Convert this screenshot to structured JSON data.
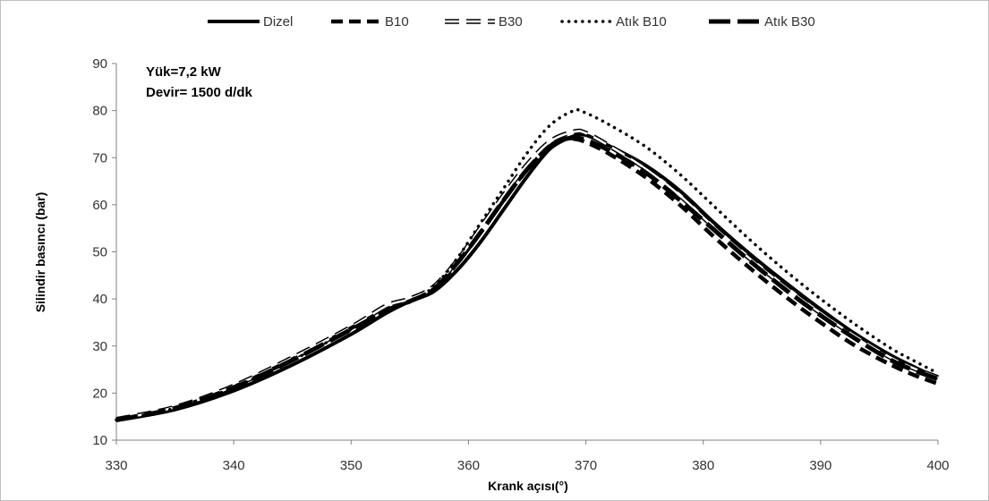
{
  "chart_data": {
    "type": "line",
    "xlabel": "Krank açısı(°)",
    "ylabel": "Silindir basıncı (bar)",
    "xlim": [
      330,
      400
    ],
    "ylim": [
      10,
      90
    ],
    "xticks": [
      330,
      340,
      350,
      360,
      370,
      380,
      390,
      400
    ],
    "yticks": [
      10,
      20,
      30,
      40,
      50,
      60,
      70,
      80,
      90
    ],
    "grid": false,
    "legend_position": "top",
    "annotations": [
      "Yük=7,2 kW",
      "Devir= 1500 d/dk"
    ],
    "series": [
      {
        "name": "Dizel",
        "style": "solid",
        "points": [
          [
            330,
            14.2
          ],
          [
            335,
            16.5
          ],
          [
            340,
            20.5
          ],
          [
            345,
            26.0
          ],
          [
            350,
            32.5
          ],
          [
            353,
            37.0
          ],
          [
            355,
            39.5
          ],
          [
            357,
            41.5
          ],
          [
            359,
            46.0
          ],
          [
            361,
            52.0
          ],
          [
            363,
            59.0
          ],
          [
            365,
            66.0
          ],
          [
            367,
            72.0
          ],
          [
            369,
            74.6
          ],
          [
            370,
            74.8
          ],
          [
            372,
            72.5
          ],
          [
            375,
            68.5
          ],
          [
            378,
            63.0
          ],
          [
            381,
            56.0
          ],
          [
            384,
            49.5
          ],
          [
            387,
            43.5
          ],
          [
            390,
            37.8
          ],
          [
            393,
            32.5
          ],
          [
            396,
            28.0
          ],
          [
            398,
            25.5
          ],
          [
            400,
            23.2
          ]
        ]
      },
      {
        "name": "B10",
        "style": "dashed",
        "points": [
          [
            330,
            14.3
          ],
          [
            335,
            16.8
          ],
          [
            340,
            21.3
          ],
          [
            345,
            27.2
          ],
          [
            350,
            33.8
          ],
          [
            353,
            37.8
          ],
          [
            355,
            39.5
          ],
          [
            357,
            42.0
          ],
          [
            359,
            47.5
          ],
          [
            361,
            54.0
          ],
          [
            363,
            61.0
          ],
          [
            365,
            67.5
          ],
          [
            367,
            72.5
          ],
          [
            368,
            73.8
          ],
          [
            369,
            74.0
          ],
          [
            370,
            73.3
          ],
          [
            372,
            70.8
          ],
          [
            375,
            66.0
          ],
          [
            378,
            60.0
          ],
          [
            381,
            53.0
          ],
          [
            384,
            46.5
          ],
          [
            387,
            40.5
          ],
          [
            390,
            35.0
          ],
          [
            393,
            30.0
          ],
          [
            396,
            26.0
          ],
          [
            398,
            23.8
          ],
          [
            400,
            22.0
          ]
        ]
      },
      {
        "name": "B30",
        "style": "hollow-dash",
        "points": [
          [
            330,
            14.4
          ],
          [
            335,
            17.0
          ],
          [
            340,
            21.5
          ],
          [
            345,
            27.5
          ],
          [
            350,
            34.0
          ],
          [
            353,
            38.5
          ],
          [
            355,
            40.0
          ],
          [
            357,
            42.5
          ],
          [
            359,
            48.0
          ],
          [
            361,
            55.0
          ],
          [
            363,
            62.0
          ],
          [
            365,
            68.5
          ],
          [
            367,
            73.5
          ],
          [
            369,
            75.5
          ],
          [
            370,
            75.2
          ],
          [
            372,
            72.5
          ],
          [
            375,
            67.8
          ],
          [
            378,
            62.0
          ],
          [
            381,
            55.0
          ],
          [
            384,
            48.5
          ],
          [
            387,
            42.5
          ],
          [
            390,
            37.0
          ],
          [
            393,
            32.0
          ],
          [
            396,
            27.5
          ],
          [
            398,
            25.2
          ],
          [
            400,
            23.3
          ]
        ]
      },
      {
        "name": "Atık B10",
        "style": "dotted",
        "points": [
          [
            330,
            14.3
          ],
          [
            335,
            16.8
          ],
          [
            340,
            21.2
          ],
          [
            345,
            27.0
          ],
          [
            350,
            33.5
          ],
          [
            353,
            37.5
          ],
          [
            355,
            39.5
          ],
          [
            357,
            42.5
          ],
          [
            359,
            48.5
          ],
          [
            361,
            56.0
          ],
          [
            363,
            63.5
          ],
          [
            365,
            71.0
          ],
          [
            367,
            77.0
          ],
          [
            369,
            80.0
          ],
          [
            370,
            79.5
          ],
          [
            372,
            77.0
          ],
          [
            375,
            72.5
          ],
          [
            378,
            66.5
          ],
          [
            381,
            59.5
          ],
          [
            384,
            52.5
          ],
          [
            387,
            46.0
          ],
          [
            390,
            40.0
          ],
          [
            393,
            34.5
          ],
          [
            396,
            29.5
          ],
          [
            398,
            26.8
          ],
          [
            400,
            24.2
          ]
        ]
      },
      {
        "name": "Atık B30",
        "style": "long-dash",
        "points": [
          [
            330,
            14.3
          ],
          [
            335,
            16.8
          ],
          [
            340,
            21.2
          ],
          [
            345,
            27.0
          ],
          [
            350,
            33.5
          ],
          [
            353,
            37.5
          ],
          [
            355,
            39.5
          ],
          [
            357,
            42.0
          ],
          [
            359,
            47.5
          ],
          [
            361,
            54.0
          ],
          [
            363,
            61.0
          ],
          [
            365,
            67.5
          ],
          [
            367,
            72.5
          ],
          [
            368,
            73.8
          ],
          [
            369,
            74.2
          ],
          [
            370,
            73.8
          ],
          [
            372,
            71.5
          ],
          [
            375,
            67.0
          ],
          [
            378,
            61.0
          ],
          [
            381,
            54.5
          ],
          [
            384,
            48.0
          ],
          [
            387,
            42.0
          ],
          [
            390,
            36.5
          ],
          [
            393,
            31.5
          ],
          [
            396,
            27.0
          ],
          [
            398,
            24.8
          ],
          [
            400,
            23.0
          ]
        ]
      }
    ]
  }
}
